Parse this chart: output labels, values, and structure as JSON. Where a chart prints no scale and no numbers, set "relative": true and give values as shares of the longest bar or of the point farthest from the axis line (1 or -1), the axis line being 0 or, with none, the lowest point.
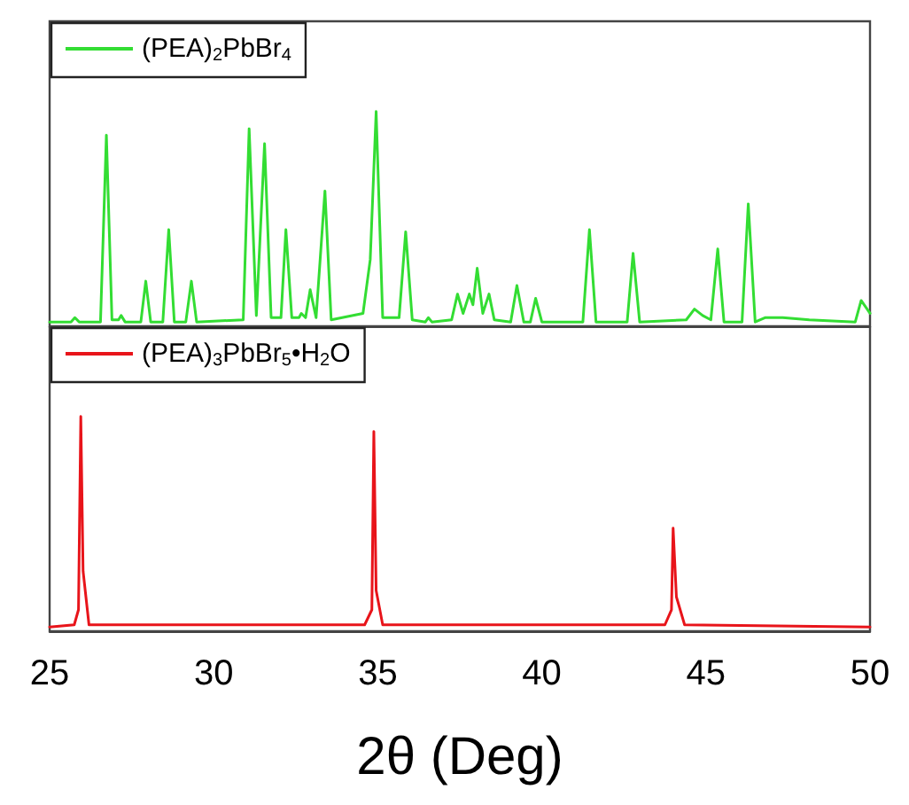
{
  "chart_data": [
    {
      "type": "line",
      "relative": true,
      "xlim": [
        25,
        50
      ],
      "xticks": [
        25,
        30,
        35,
        40,
        45,
        50
      ],
      "tick_labels": false,
      "legend": "top left",
      "grid": false,
      "marker": "none",
      "line_style": "solid",
      "series": [
        {
          "name": "(PEA)$_{2}$PbBr$_{4}$",
          "color": "#33dd33",
          "x": [
            25,
            25.65,
            25.77,
            25.9,
            26.55,
            26.73,
            26.9,
            27.1,
            27.18,
            27.3,
            27.78,
            27.93,
            28.08,
            28.45,
            28.63,
            28.8,
            29.15,
            29.32,
            29.48,
            30.9,
            31.08,
            31.3,
            31.55,
            31.75,
            32.05,
            32.2,
            32.38,
            32.6,
            32.67,
            32.8,
            32.94,
            33.12,
            33.39,
            33.58,
            34.55,
            34.77,
            34.95,
            35.15,
            35.65,
            35.85,
            36.05,
            36.45,
            36.54,
            36.65,
            37.25,
            37.43,
            37.6,
            37.79,
            37.9,
            38.03,
            38.2,
            38.39,
            38.55,
            39.05,
            39.24,
            39.45,
            39.65,
            39.81,
            40.0,
            40.86,
            41.25,
            41.45,
            41.65,
            42.6,
            42.78,
            42.98,
            44.4,
            44.65,
            44.9,
            45.15,
            45.36,
            45.55,
            46.1,
            46.29,
            46.5,
            46.8,
            47.34,
            48.15,
            49.55,
            49.73,
            50
          ],
          "values": [
            0.02,
            0.02,
            0.04,
            0.02,
            0.02,
            0.89,
            0.03,
            0.03,
            0.05,
            0.02,
            0.02,
            0.21,
            0.02,
            0.02,
            0.45,
            0.02,
            0.02,
            0.21,
            0.02,
            0.03,
            0.92,
            0.05,
            0.85,
            0.04,
            0.04,
            0.45,
            0.04,
            0.04,
            0.06,
            0.04,
            0.17,
            0.04,
            0.63,
            0.03,
            0.06,
            0.31,
            1,
            0.04,
            0.04,
            0.44,
            0.03,
            0.02,
            0.04,
            0.02,
            0.03,
            0.15,
            0.06,
            0.15,
            0.1,
            0.27,
            0.06,
            0.15,
            0.03,
            0.02,
            0.19,
            0.02,
            0.02,
            0.13,
            0.02,
            0.02,
            0.02,
            0.45,
            0.02,
            0.02,
            0.34,
            0.02,
            0.03,
            0.08,
            0.05,
            0.03,
            0.36,
            0.02,
            0.02,
            0.57,
            0.02,
            0.04,
            0.04,
            0.03,
            0.02,
            0.12,
            0.06
          ]
        }
      ]
    },
    {
      "type": "line",
      "relative": true,
      "xlim": [
        25,
        50
      ],
      "xticks": [
        25,
        30,
        35,
        40,
        45,
        50
      ],
      "tick_labels": "x",
      "xlabel": "2θ (Deg)",
      "legend": "top left",
      "grid": false,
      "marker": "none",
      "line_style": "solid",
      "series": [
        {
          "name": "(PEA)$_{3}$PbBr$_{5}$•H$_{2}$O",
          "color": "#e8141a",
          "x": [
            25,
            25.75,
            25.88,
            25.95,
            26.02,
            26.2,
            34.6,
            34.82,
            34.88,
            34.95,
            35.15,
            43.75,
            43.95,
            44.0,
            44.1,
            44.35,
            50
          ],
          "values": [
            0.02,
            0.03,
            0.1,
            1,
            0.28,
            0.03,
            0.03,
            0.1,
            0.93,
            0.19,
            0.03,
            0.03,
            0.1,
            0.48,
            0.16,
            0.03,
            0.02
          ]
        }
      ]
    }
  ]
}
